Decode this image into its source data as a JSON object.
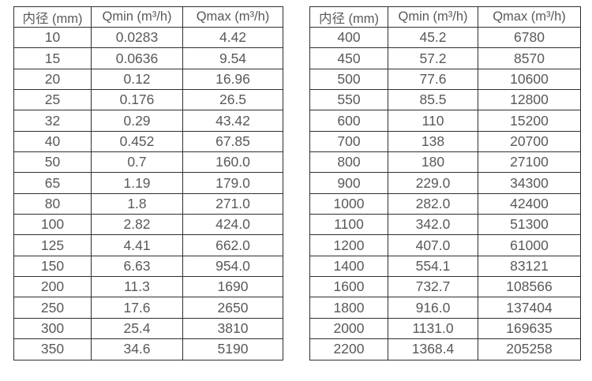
{
  "colors": {
    "background": "#ffffff",
    "border": "#2f2f2f",
    "text": "#595959"
  },
  "tables": [
    {
      "name": "flow-spec-table-small-diameters",
      "headers": [
        "内径 (mm)",
        "Qmin (m³/h)",
        "Qmax (m³/h)"
      ],
      "rows": [
        [
          "10",
          "0.0283",
          "4.42"
        ],
        [
          "15",
          "0.0636",
          "9.54"
        ],
        [
          "20",
          "0.12",
          "16.96"
        ],
        [
          "25",
          "0.176",
          "26.5"
        ],
        [
          "32",
          "0.29",
          "43.42"
        ],
        [
          "40",
          "0.452",
          "67.85"
        ],
        [
          "50",
          "0.7",
          "160.0"
        ],
        [
          "65",
          "1.19",
          "179.0"
        ],
        [
          "80",
          "1.8",
          "271.0"
        ],
        [
          "100",
          "2.82",
          "424.0"
        ],
        [
          "125",
          "4.41",
          "662.0"
        ],
        [
          "150",
          "6.63",
          "954.0"
        ],
        [
          "200",
          "11.3",
          "1690"
        ],
        [
          "250",
          "17.6",
          "2650"
        ],
        [
          "300",
          "25.4",
          "3810"
        ],
        [
          "350",
          "34.6",
          "5190"
        ]
      ]
    },
    {
      "name": "flow-spec-table-large-diameters",
      "headers": [
        "内径 (mm)",
        "Qmin (m³/h)",
        "Qmax (m³/h)"
      ],
      "rows": [
        [
          "400",
          "45.2",
          "6780"
        ],
        [
          "450",
          "57.2",
          "8570"
        ],
        [
          "500",
          "77.6",
          "10600"
        ],
        [
          "550",
          "85.5",
          "12800"
        ],
        [
          "600",
          "110",
          "15200"
        ],
        [
          "700",
          "138",
          "20700"
        ],
        [
          "800",
          "180",
          "27100"
        ],
        [
          "900",
          "229.0",
          "34300"
        ],
        [
          "1000",
          "282.0",
          "42400"
        ],
        [
          "1100",
          "342.0",
          "51300"
        ],
        [
          "1200",
          "407.0",
          "61000"
        ],
        [
          "1400",
          "554.1",
          "83121"
        ],
        [
          "1600",
          "732.7",
          "108566"
        ],
        [
          "1800",
          "916.0",
          "137404"
        ],
        [
          "2000",
          "1131.0",
          "169635"
        ],
        [
          "2200",
          "1368.4",
          "205258"
        ]
      ]
    }
  ]
}
